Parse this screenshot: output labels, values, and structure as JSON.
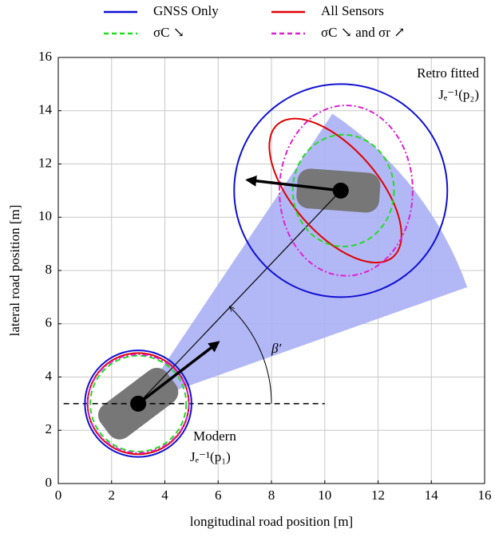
{
  "chart_data": {
    "type": "ellipse",
    "xlabel": "longitudinal road position [m]",
    "ylabel": "lateral road position [m]",
    "xlim": [
      0,
      16
    ],
    "ylim": [
      0,
      16
    ],
    "xticks": [
      0,
      2,
      4,
      6,
      8,
      10,
      12,
      14,
      16
    ],
    "yticks": [
      0,
      2,
      4,
      6,
      8,
      10,
      12,
      14,
      16
    ],
    "grid": true,
    "legend": "top",
    "series": [
      {
        "name": "GNSS Only",
        "color": "#1010d0",
        "dash": "solid",
        "ellipses": [
          {
            "cx": 3,
            "cy": 3,
            "rx": 2,
            "ry": 2,
            "angle": 0
          },
          {
            "cx": 10.6,
            "cy": 11,
            "rx": 4,
            "ry": 4,
            "angle": 0
          }
        ]
      },
      {
        "name": "All Sensors",
        "color": "#e00000",
        "dash": "solid",
        "ellipses": [
          {
            "cx": 3,
            "cy": 3,
            "rx": 1.9,
            "ry": 1.9,
            "angle": 0
          },
          {
            "cx": 10.4,
            "cy": 11,
            "rx": 3.3,
            "ry": 1.6,
            "angle": -49
          }
        ]
      },
      {
        "name": "σC ↘",
        "color": "#22dd22",
        "dash": "dashed",
        "ellipses": [
          {
            "cx": 3,
            "cy": 3,
            "rx": 1.8,
            "ry": 1.8,
            "angle": 0
          },
          {
            "cx": 10.7,
            "cy": 11,
            "rx": 1.9,
            "ry": 2.1,
            "angle": 0
          }
        ]
      },
      {
        "name": "σC ↘ and σr ↗",
        "color": "#e020d0",
        "dash": "dashdot",
        "ellipses": [
          {
            "cx": 3,
            "cy": 3,
            "rx": 1.9,
            "ry": 1.85,
            "angle": 0
          },
          {
            "cx": 10.8,
            "cy": 11,
            "rx": 2.5,
            "ry": 3.2,
            "angle": 0
          }
        ]
      }
    ],
    "vehicles": [
      {
        "x": 3,
        "y": 3,
        "arrow_x": 6,
        "arrow_y": 5.3
      },
      {
        "x": 10.6,
        "y": 11,
        "arrow_x": 7.1,
        "arrow_y": 11.4
      }
    ],
    "cone": {
      "x": 3,
      "y": 3,
      "radius": 13.1,
      "angle_from": 19.5,
      "angle_to": 56.2,
      "color": "#aab0f5"
    },
    "reference_line": {
      "y": 3,
      "x_from": 0.2,
      "x_to": 10
    },
    "angle_arc": {
      "radius": 5,
      "angle_to": 46.5
    },
    "annotations": [
      "Retro fitted",
      "Jₑ⁻¹(p₂)",
      "Modern",
      "Jₑ⁻¹(p₁)",
      "β′"
    ]
  }
}
